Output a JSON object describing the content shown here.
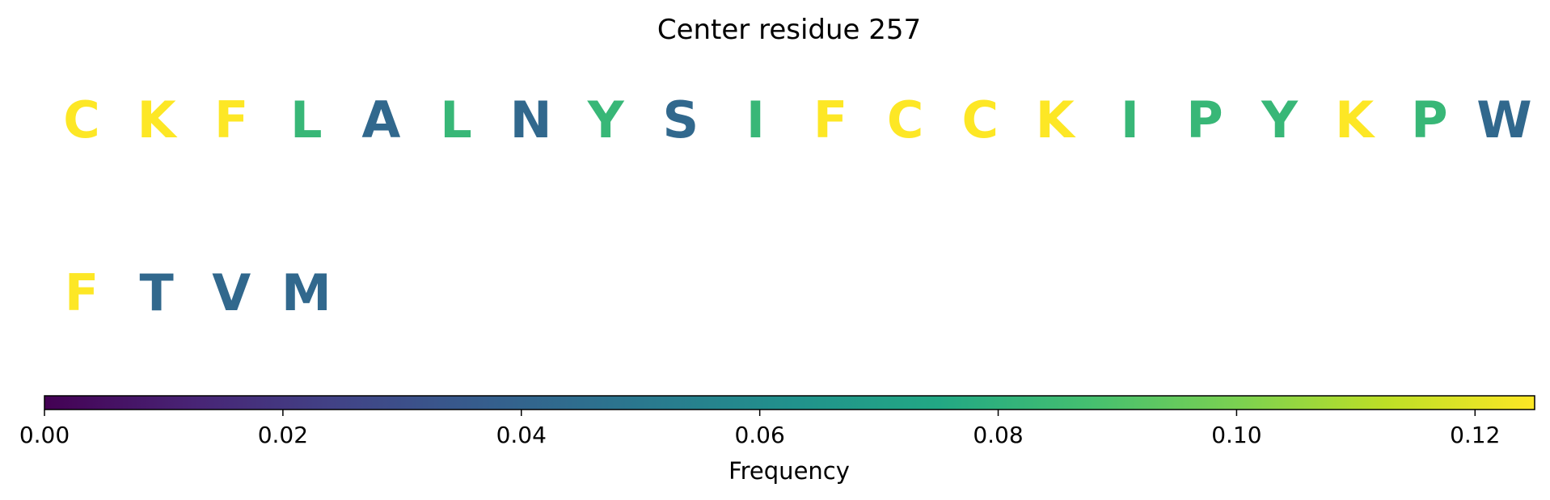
{
  "chart_data": {
    "type": "heatmap",
    "title": "Center residue 257",
    "residues": [
      {
        "letter": "C",
        "frequency": 0.125
      },
      {
        "letter": "K",
        "frequency": 0.125
      },
      {
        "letter": "F",
        "frequency": 0.125
      },
      {
        "letter": "L",
        "frequency": 0.083
      },
      {
        "letter": "A",
        "frequency": 0.042
      },
      {
        "letter": "L",
        "frequency": 0.083
      },
      {
        "letter": "N",
        "frequency": 0.042
      },
      {
        "letter": "Y",
        "frequency": 0.083
      },
      {
        "letter": "S",
        "frequency": 0.042
      },
      {
        "letter": "I",
        "frequency": 0.083
      },
      {
        "letter": "F",
        "frequency": 0.125
      },
      {
        "letter": "C",
        "frequency": 0.125
      },
      {
        "letter": "C",
        "frequency": 0.125
      },
      {
        "letter": "K",
        "frequency": 0.125
      },
      {
        "letter": "I",
        "frequency": 0.083
      },
      {
        "letter": "P",
        "frequency": 0.083
      },
      {
        "letter": "Y",
        "frequency": 0.083
      },
      {
        "letter": "K",
        "frequency": 0.125
      },
      {
        "letter": "P",
        "frequency": 0.083
      },
      {
        "letter": "W",
        "frequency": 0.042
      },
      {
        "letter": "F",
        "frequency": 0.125
      },
      {
        "letter": "T",
        "frequency": 0.042
      },
      {
        "letter": "V",
        "frequency": 0.042
      },
      {
        "letter": "M",
        "frequency": 0.042
      }
    ],
    "colorbar": {
      "label": "Frequency",
      "colormap": "viridis",
      "range": [
        0,
        0.125
      ],
      "ticks": [
        {
          "value": 0.0,
          "label": "0.00"
        },
        {
          "value": 0.02,
          "label": "0.02"
        },
        {
          "value": 0.04,
          "label": "0.04"
        },
        {
          "value": 0.06,
          "label": "0.06"
        },
        {
          "value": 0.08,
          "label": "0.08"
        },
        {
          "value": 0.1,
          "label": "0.10"
        },
        {
          "value": 0.12,
          "label": "0.12"
        }
      ],
      "orientation": "horizontal",
      "placement": "bottom"
    }
  }
}
